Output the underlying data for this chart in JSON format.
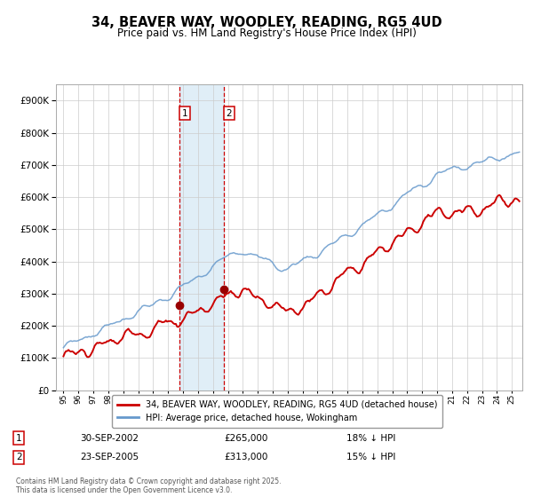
{
  "title": "34, BEAVER WAY, WOODLEY, READING, RG5 4UD",
  "subtitle": "Price paid vs. HM Land Registry's House Price Index (HPI)",
  "legend_line1": "34, BEAVER WAY, WOODLEY, READING, RG5 4UD (detached house)",
  "legend_line2": "HPI: Average price, detached house, Wokingham",
  "red_color": "#cc0000",
  "blue_color": "#6699cc",
  "marker_color": "#990000",
  "grid_color": "#cccccc",
  "transaction1_date_num": 2002.75,
  "transaction1_price": 265000,
  "transaction2_date_num": 2005.72,
  "transaction2_price": 313000,
  "footer": "Contains HM Land Registry data © Crown copyright and database right 2025.\nThis data is licensed under the Open Government Licence v3.0.",
  "xlim": [
    1994.5,
    2025.7
  ],
  "ylim": [
    0,
    950000
  ],
  "yticks": [
    0,
    100000,
    200000,
    300000,
    400000,
    500000,
    600000,
    700000,
    800000,
    900000
  ]
}
